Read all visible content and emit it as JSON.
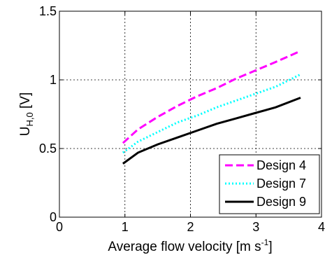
{
  "chart_data": {
    "type": "line",
    "title": "",
    "xlabel": "Average flow velocity [m s",
    "xlabel_sup": "-1",
    "xlabel_end": "]",
    "ylabel": "U",
    "ylabel_sub": "H,0",
    "ylabel_end": " [V]",
    "xlim": [
      0,
      4
    ],
    "ylim": [
      0,
      1.5
    ],
    "x_ticks": [
      0,
      1,
      2,
      3,
      4
    ],
    "x_tick_labels": [
      "0",
      "1",
      "2",
      "3",
      "4"
    ],
    "y_ticks": [
      0,
      0.5,
      1,
      1.5
    ],
    "y_tick_labels": [
      "0",
      "0.5",
      "1",
      "1.5"
    ],
    "grid": true,
    "legend_position": "bottom-right",
    "series": [
      {
        "name": "Design 4",
        "color": "#ff00ff",
        "dash": "dashed",
        "x": [
          0.97,
          1.2,
          1.5,
          1.8,
          2.1,
          2.4,
          2.7,
          3.0,
          3.3,
          3.68
        ],
        "y": [
          0.54,
          0.64,
          0.73,
          0.81,
          0.88,
          0.94,
          1.01,
          1.07,
          1.13,
          1.21
        ]
      },
      {
        "name": "Design 7",
        "color": "#00ffff",
        "dash": "dotted",
        "x": [
          0.97,
          1.2,
          1.5,
          1.8,
          2.1,
          2.4,
          2.7,
          3.0,
          3.3,
          3.68
        ],
        "y": [
          0.47,
          0.55,
          0.62,
          0.69,
          0.74,
          0.8,
          0.85,
          0.9,
          0.95,
          1.04
        ]
      },
      {
        "name": "Design 9",
        "color": "#000000",
        "dash": "solid",
        "x": [
          0.97,
          1.2,
          1.5,
          1.8,
          2.1,
          2.4,
          2.7,
          3.0,
          3.3,
          3.68
        ],
        "y": [
          0.39,
          0.47,
          0.53,
          0.58,
          0.63,
          0.68,
          0.72,
          0.76,
          0.8,
          0.87
        ]
      }
    ]
  }
}
